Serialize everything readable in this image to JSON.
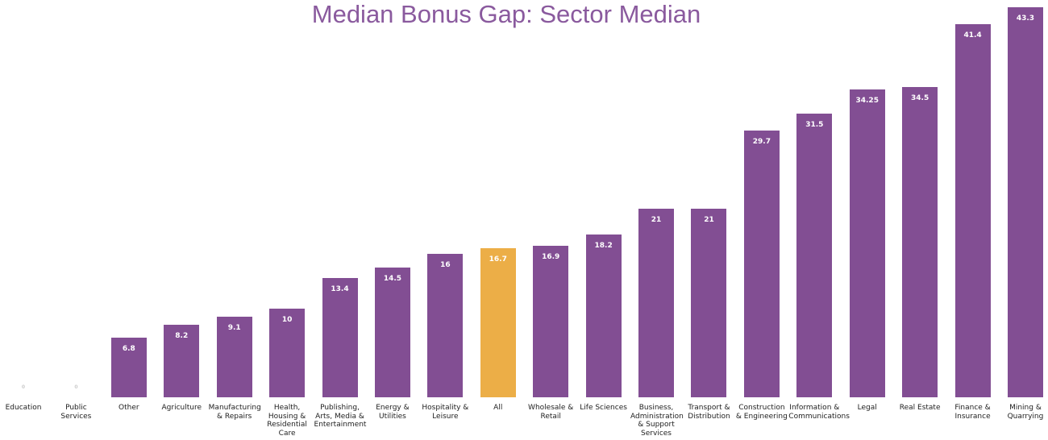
{
  "chart_data": {
    "type": "bar",
    "title": "Median Bonus Gap: Sector Median",
    "categories": [
      "Education",
      "Public Services",
      "Other",
      "Agriculture",
      "Manufacturing & Repairs",
      "Health, Housing & Residential Care",
      "Publishing, Arts, Media & Entertainment",
      "Energy & Utilities",
      "Hospitality & Leisure",
      "All",
      "Wholesale & Retail",
      "Life Sciences",
      "Business, Administration & Support Services",
      "Transport & Distribution",
      "Construction & Engineering",
      "Information & Communications",
      "Legal",
      "Real Estate",
      "Finance & Insurance",
      "Mining & Quarrying"
    ],
    "values": [
      0,
      0,
      6.8,
      8.2,
      9.1,
      10,
      13.4,
      14.5,
      16,
      16.7,
      16.9,
      18.2,
      21,
      21,
      29.7,
      31.5,
      34.25,
      34.5,
      41.4,
      43.3
    ],
    "colors": [
      "#824e93",
      "#824e93",
      "#824e93",
      "#824e93",
      "#824e93",
      "#824e93",
      "#824e93",
      "#824e93",
      "#824e93",
      "#ecae47",
      "#824e93",
      "#824e93",
      "#824e93",
      "#824e93",
      "#824e93",
      "#824e93",
      "#824e93",
      "#824e93",
      "#824e93",
      "#824e93"
    ]
  }
}
